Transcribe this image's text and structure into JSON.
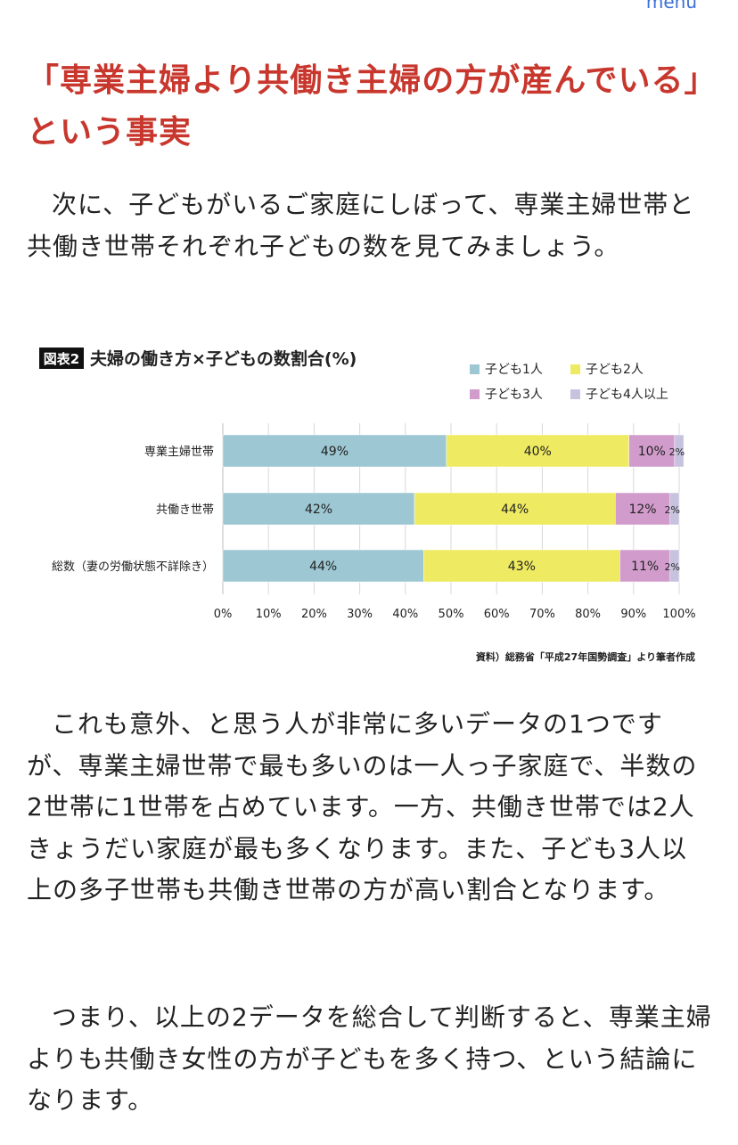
{
  "header": {
    "menu_label": "menu"
  },
  "article": {
    "heading": "「専業主婦より共働き主婦の方が産んでいる」という事実",
    "paragraph_1": "次に、子どもがいるご家庭にしぼって、専業主婦世帯と共働き世帯それぞれ子どもの数を見てみましょう。",
    "paragraph_2": "これも意外、と思う人が非常に多いデータの1つですが、専業主婦世帯で最も多いのは一人っ子家庭で、半数の2世帯に1世帯を占めています。一方、共働き世帯では2人きょうだい家庭が最も多くなります。また、子ども3人以上の多子世帯も共働き世帯の方が高い割合となります。",
    "paragraph_3": "つまり、以上の2データを総合して判断すると、専業主婦よりも共働き女性の方が子どもを多く持つ、という結論になります。"
  },
  "chart_data": {
    "type": "bar",
    "orientation": "horizontal",
    "stacked": true,
    "badge": "図表2",
    "title": "夫婦の働き方×子どもの数割合(%)",
    "source": "資料）総務省「平成27年国勢調査」より筆者作成",
    "categories": [
      "専業主婦世帯",
      "共働き世帯",
      "総数（妻の労働状態不詳除き）"
    ],
    "series": [
      {
        "name": "子ども1人",
        "color": "#9cc7d3",
        "values": [
          49,
          42,
          44
        ],
        "labels": [
          "49%",
          "42%",
          "44%"
        ]
      },
      {
        "name": "子ども2人",
        "color": "#eeea62",
        "values": [
          40,
          44,
          43
        ],
        "labels": [
          "40%",
          "44%",
          "43%"
        ]
      },
      {
        "name": "子ども3人",
        "color": "#d19ccc",
        "values": [
          10,
          12,
          11
        ],
        "labels": [
          "10%",
          "12%",
          "11%"
        ]
      },
      {
        "name": "子ども4人以上",
        "color": "#c7c3de",
        "values": [
          2,
          2,
          2
        ],
        "labels": [
          "2%",
          "2%",
          "2%"
        ]
      }
    ],
    "x_ticks": [
      "0%",
      "10%",
      "20%",
      "30%",
      "40%",
      "50%",
      "60%",
      "70%",
      "80%",
      "90%",
      "100%"
    ],
    "xlim": [
      0,
      100
    ],
    "grid": true,
    "legend_position": "top-right"
  }
}
